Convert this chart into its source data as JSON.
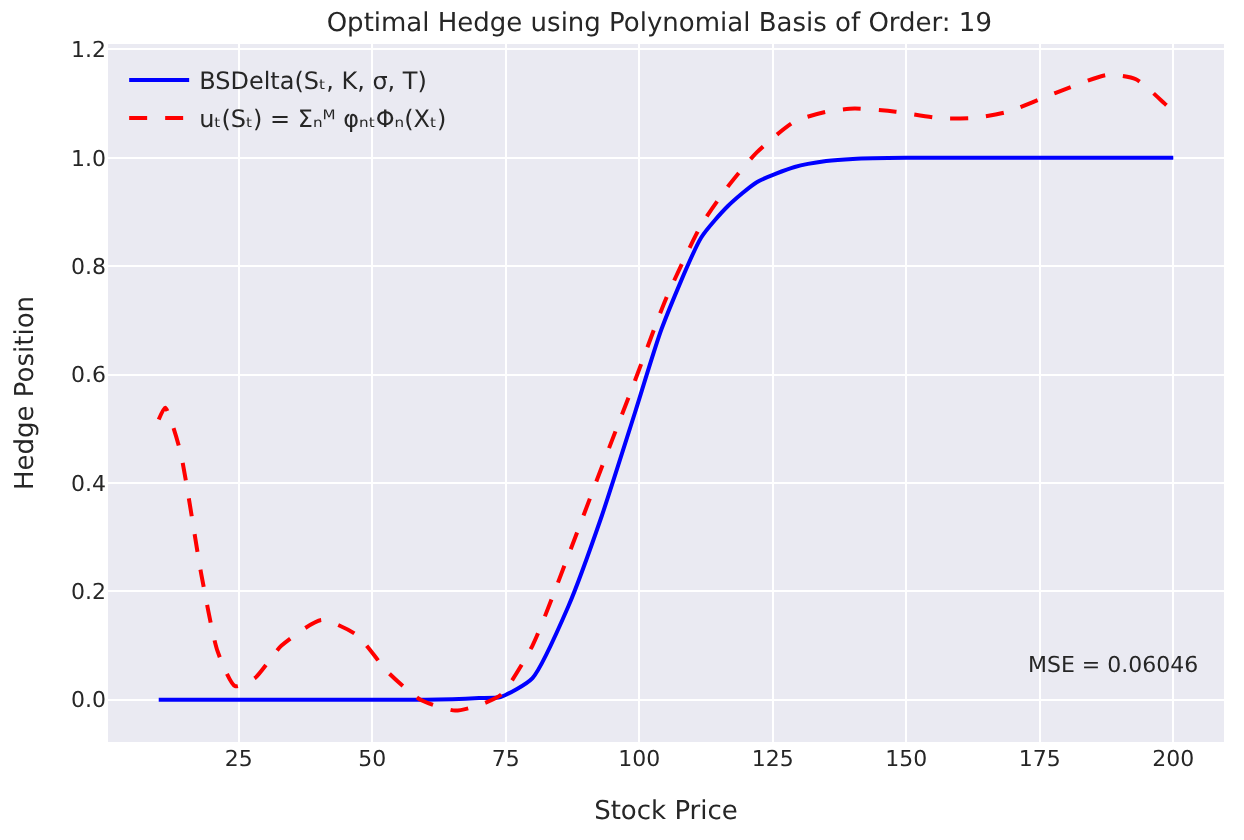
{
  "chart_data": {
    "type": "line",
    "title": "Optimal Hedge using Polynomial Basis of Order: 19",
    "xlabel": "Stock Price",
    "ylabel": "Hedge Position",
    "series": [
      {
        "name": "BSDelta(Sₜ, K, σ, T)",
        "color": "#0000ff",
        "line_style": "solid",
        "x": [
          10,
          30,
          50,
          60,
          65,
          70,
          74,
          80,
          86.7,
          93,
          99.2,
          104.2,
          111.6,
          116.6,
          122,
          129.1,
          135,
          140,
          150,
          170,
          200
        ],
        "values": [
          0,
          0,
          0,
          0,
          0.001,
          0.003,
          0.005,
          0.04,
          0.172,
          0.34,
          0.53,
          0.685,
          0.853,
          0.911,
          0.955,
          0.983,
          0.994,
          0.998,
          1.0,
          1.0,
          1.0
        ]
      },
      {
        "name": "uₜ(Sₜ) = Σₙᴹ φₙₜΦₙ(Xₜ)",
        "color": "#ff0000",
        "line_style": "dashed",
        "x": [
          10,
          11.2,
          14,
          18,
          21,
          24.3,
          28,
          33,
          40.5,
          47,
          53,
          59,
          65.5,
          70,
          74.2,
          80,
          86.7,
          93,
          99.2,
          105,
          111.6,
          116.6,
          122,
          129.1,
          135,
          140.3,
          148,
          156.6,
          163,
          169,
          178,
          187.7,
          193,
          198.4,
          200
        ],
        "values": [
          0.517,
          0.539,
          0.46,
          0.23,
          0.09,
          0.025,
          0.04,
          0.1,
          0.147,
          0.12,
          0.05,
          0.0,
          -0.02,
          -0.01,
          0.01,
          0.1,
          0.266,
          0.43,
          0.589,
          0.74,
          0.876,
          0.947,
          1.01,
          1.067,
          1.085,
          1.091,
          1.085,
          1.073,
          1.074,
          1.085,
          1.12,
          1.153,
          1.145,
          1.1,
          1.085
        ]
      }
    ],
    "xlim": [
      0.5,
      209.5
    ],
    "ylim": [
      -0.078,
      1.21
    ],
    "xticks": [
      25,
      50,
      75,
      100,
      125,
      150,
      175,
      200
    ],
    "yticks": [
      {
        "value": 0,
        "label": "0.0"
      },
      {
        "value": 0.2,
        "label": "0.2"
      },
      {
        "value": 0.4,
        "label": "0.4"
      },
      {
        "value": 0.6,
        "label": "0.6"
      },
      {
        "value": 0.8,
        "label": "0.8"
      },
      {
        "value": 1,
        "label": "1.0"
      },
      {
        "value": 1.2,
        "label": "1.2"
      }
    ],
    "grid": true,
    "legend": "top left",
    "marker": "none",
    "annotations": [
      "MSE = 0.06046"
    ]
  }
}
